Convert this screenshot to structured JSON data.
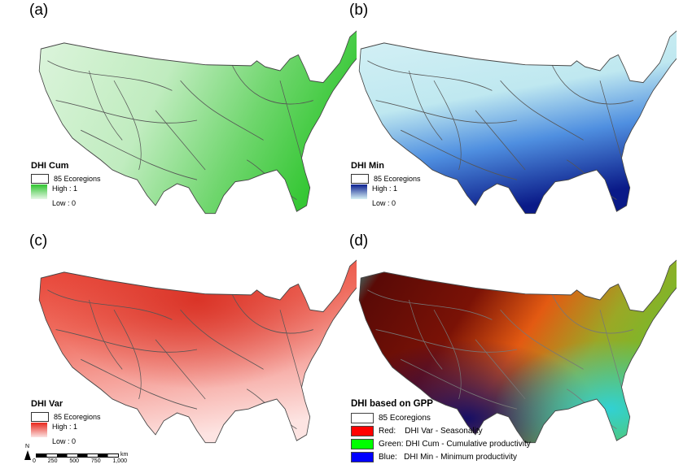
{
  "panels": [
    {
      "label": "(a)",
      "legend_title": "DHI Cum",
      "ecoregions": "85 Ecoregions",
      "high": "High : 1",
      "low": "Low : 0",
      "color_high": "#2fc42f",
      "color_low": "#e6f7e6"
    },
    {
      "label": "(b)",
      "legend_title": "DHI Min",
      "ecoregions": "85 Ecoregions",
      "high": "High : 1",
      "low": "Low : 0",
      "color_high": "#0a1f8f",
      "color_low": "#d6f1f5"
    },
    {
      "label": "(c)",
      "legend_title": "DHI Var",
      "ecoregions": "85 Ecoregions",
      "high": "High : 1",
      "low": "Low : 0",
      "color_high": "#e8281d",
      "color_low": "#fbe3e3"
    },
    {
      "label": "(d)",
      "legend_title": "DHI based on GPP",
      "ecoregions": "85 Ecoregions",
      "items": [
        {
          "text": "Red:    DHI Var - Seasonality",
          "color": "#ff0000"
        },
        {
          "text": "Green: DHI Cum - Cumulative productivity",
          "color": "#00ff00"
        },
        {
          "text": "Blue:   DHI Min - Minimum productivity",
          "color": "#0000ff"
        }
      ]
    }
  ],
  "scale_bar": {
    "north": "N",
    "ticks": [
      "0",
      "250",
      "500",
      "750",
      "1,000"
    ],
    "unit": "km"
  }
}
